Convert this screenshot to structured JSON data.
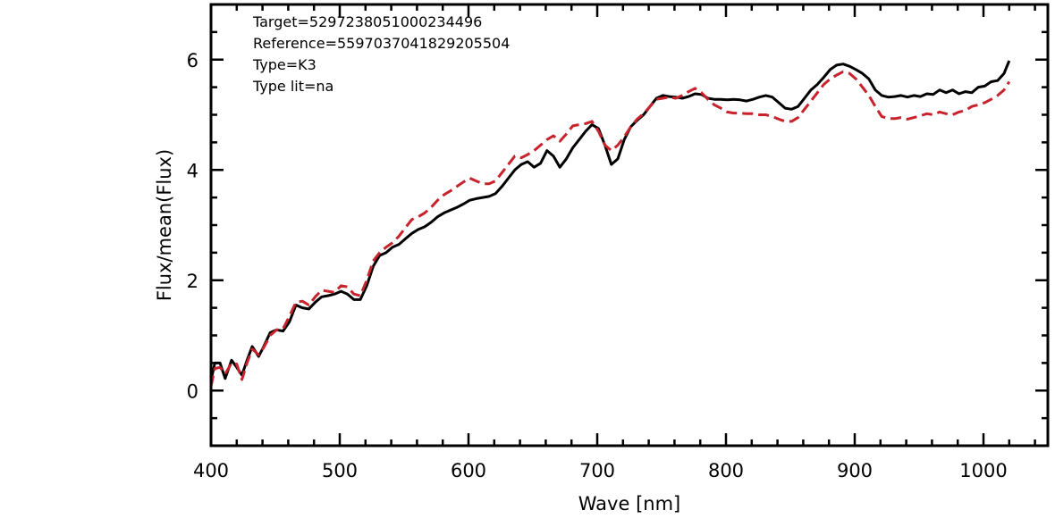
{
  "chart_data": {
    "type": "line",
    "title": "",
    "xlabel": "Wave [nm]",
    "ylabel": "Flux/mean(Flux)",
    "xlim": [
      400,
      1050
    ],
    "ylim": [
      -1,
      7
    ],
    "xticks": [
      400,
      500,
      600,
      700,
      800,
      900,
      1000
    ],
    "yticks": [
      0,
      2,
      4,
      6
    ],
    "grid": false,
    "legend": "none",
    "annotations": [
      "Target=5297238051000234496",
      "Reference=5597037041829205504",
      "Type=K3",
      "Type lit=na"
    ],
    "series": [
      {
        "color": "#000000",
        "style": "solid",
        "points": [
          [
            400,
            0.18
          ],
          [
            403,
            0.5
          ],
          [
            407,
            0.5
          ],
          [
            411,
            0.22
          ],
          [
            416,
            0.55
          ],
          [
            420,
            0.42
          ],
          [
            424,
            0.28
          ],
          [
            428,
            0.55
          ],
          [
            432,
            0.8
          ],
          [
            437,
            0.62
          ],
          [
            441,
            0.8
          ],
          [
            446,
            1.05
          ],
          [
            451,
            1.1
          ],
          [
            456,
            1.08
          ],
          [
            461,
            1.25
          ],
          [
            466,
            1.55
          ],
          [
            471,
            1.5
          ],
          [
            476,
            1.48
          ],
          [
            481,
            1.6
          ],
          [
            486,
            1.7
          ],
          [
            491,
            1.72
          ],
          [
            496,
            1.75
          ],
          [
            501,
            1.8
          ],
          [
            506,
            1.75
          ],
          [
            511,
            1.65
          ],
          [
            516,
            1.65
          ],
          [
            521,
            1.9
          ],
          [
            526,
            2.25
          ],
          [
            531,
            2.45
          ],
          [
            536,
            2.5
          ],
          [
            541,
            2.6
          ],
          [
            546,
            2.65
          ],
          [
            551,
            2.75
          ],
          [
            556,
            2.85
          ],
          [
            561,
            2.92
          ],
          [
            566,
            2.97
          ],
          [
            571,
            3.05
          ],
          [
            576,
            3.15
          ],
          [
            581,
            3.22
          ],
          [
            586,
            3.27
          ],
          [
            591,
            3.32
          ],
          [
            596,
            3.38
          ],
          [
            601,
            3.45
          ],
          [
            606,
            3.48
          ],
          [
            611,
            3.5
          ],
          [
            616,
            3.52
          ],
          [
            621,
            3.57
          ],
          [
            626,
            3.7
          ],
          [
            631,
            3.85
          ],
          [
            636,
            4.0
          ],
          [
            641,
            4.1
          ],
          [
            646,
            4.15
          ],
          [
            651,
            4.05
          ],
          [
            656,
            4.12
          ],
          [
            661,
            4.35
          ],
          [
            666,
            4.25
          ],
          [
            671,
            4.05
          ],
          [
            676,
            4.2
          ],
          [
            681,
            4.4
          ],
          [
            686,
            4.55
          ],
          [
            691,
            4.7
          ],
          [
            696,
            4.82
          ],
          [
            701,
            4.75
          ],
          [
            706,
            4.45
          ],
          [
            711,
            4.1
          ],
          [
            716,
            4.2
          ],
          [
            721,
            4.55
          ],
          [
            726,
            4.78
          ],
          [
            731,
            4.9
          ],
          [
            736,
            5.0
          ],
          [
            741,
            5.15
          ],
          [
            746,
            5.3
          ],
          [
            751,
            5.35
          ],
          [
            756,
            5.33
          ],
          [
            761,
            5.32
          ],
          [
            766,
            5.3
          ],
          [
            771,
            5.33
          ],
          [
            776,
            5.38
          ],
          [
            781,
            5.37
          ],
          [
            786,
            5.3
          ],
          [
            791,
            5.28
          ],
          [
            796,
            5.28
          ],
          [
            801,
            5.27
          ],
          [
            806,
            5.28
          ],
          [
            811,
            5.27
          ],
          [
            816,
            5.25
          ],
          [
            821,
            5.28
          ],
          [
            826,
            5.32
          ],
          [
            831,
            5.35
          ],
          [
            836,
            5.32
          ],
          [
            841,
            5.22
          ],
          [
            846,
            5.12
          ],
          [
            851,
            5.1
          ],
          [
            856,
            5.15
          ],
          [
            861,
            5.3
          ],
          [
            866,
            5.45
          ],
          [
            871,
            5.55
          ],
          [
            876,
            5.68
          ],
          [
            881,
            5.82
          ],
          [
            886,
            5.9
          ],
          [
            891,
            5.92
          ],
          [
            896,
            5.88
          ],
          [
            901,
            5.82
          ],
          [
            906,
            5.75
          ],
          [
            911,
            5.65
          ],
          [
            916,
            5.45
          ],
          [
            921,
            5.35
          ],
          [
            926,
            5.32
          ],
          [
            931,
            5.33
          ],
          [
            936,
            5.35
          ],
          [
            941,
            5.32
          ],
          [
            946,
            5.35
          ],
          [
            951,
            5.33
          ],
          [
            956,
            5.38
          ],
          [
            961,
            5.37
          ],
          [
            966,
            5.45
          ],
          [
            971,
            5.4
          ],
          [
            976,
            5.45
          ],
          [
            981,
            5.38
          ],
          [
            986,
            5.42
          ],
          [
            991,
            5.4
          ],
          [
            996,
            5.5
          ],
          [
            1001,
            5.52
          ],
          [
            1006,
            5.6
          ],
          [
            1011,
            5.62
          ],
          [
            1016,
            5.75
          ],
          [
            1020,
            5.98
          ]
        ]
      },
      {
        "color": "#c8232c",
        "style": "dashed",
        "points": [
          [
            400,
            0.08
          ],
          [
            403,
            0.4
          ],
          [
            407,
            0.42
          ],
          [
            411,
            0.3
          ],
          [
            416,
            0.5
          ],
          [
            420,
            0.48
          ],
          [
            424,
            0.2
          ],
          [
            428,
            0.5
          ],
          [
            432,
            0.75
          ],
          [
            437,
            0.65
          ],
          [
            441,
            0.78
          ],
          [
            446,
            1.0
          ],
          [
            451,
            1.1
          ],
          [
            456,
            1.12
          ],
          [
            461,
            1.35
          ],
          [
            466,
            1.6
          ],
          [
            471,
            1.62
          ],
          [
            476,
            1.55
          ],
          [
            481,
            1.7
          ],
          [
            486,
            1.82
          ],
          [
            491,
            1.8
          ],
          [
            496,
            1.78
          ],
          [
            501,
            1.9
          ],
          [
            506,
            1.88
          ],
          [
            511,
            1.75
          ],
          [
            516,
            1.72
          ],
          [
            521,
            2.0
          ],
          [
            526,
            2.35
          ],
          [
            531,
            2.5
          ],
          [
            536,
            2.6
          ],
          [
            541,
            2.68
          ],
          [
            546,
            2.8
          ],
          [
            551,
            2.95
          ],
          [
            556,
            3.1
          ],
          [
            561,
            3.15
          ],
          [
            566,
            3.22
          ],
          [
            571,
            3.32
          ],
          [
            576,
            3.45
          ],
          [
            581,
            3.55
          ],
          [
            586,
            3.62
          ],
          [
            591,
            3.7
          ],
          [
            596,
            3.78
          ],
          [
            601,
            3.85
          ],
          [
            606,
            3.8
          ],
          [
            611,
            3.75
          ],
          [
            616,
            3.75
          ],
          [
            621,
            3.8
          ],
          [
            626,
            3.95
          ],
          [
            631,
            4.1
          ],
          [
            636,
            4.25
          ],
          [
            641,
            4.22
          ],
          [
            646,
            4.28
          ],
          [
            651,
            4.35
          ],
          [
            656,
            4.45
          ],
          [
            661,
            4.55
          ],
          [
            666,
            4.62
          ],
          [
            671,
            4.52
          ],
          [
            676,
            4.65
          ],
          [
            681,
            4.8
          ],
          [
            686,
            4.82
          ],
          [
            691,
            4.84
          ],
          [
            696,
            4.88
          ],
          [
            701,
            4.7
          ],
          [
            706,
            4.45
          ],
          [
            711,
            4.35
          ],
          [
            716,
            4.45
          ],
          [
            721,
            4.6
          ],
          [
            726,
            4.78
          ],
          [
            731,
            4.92
          ],
          [
            736,
            5.02
          ],
          [
            741,
            5.15
          ],
          [
            746,
            5.28
          ],
          [
            751,
            5.3
          ],
          [
            756,
            5.32
          ],
          [
            761,
            5.3
          ],
          [
            766,
            5.35
          ],
          [
            771,
            5.42
          ],
          [
            776,
            5.48
          ],
          [
            781,
            5.4
          ],
          [
            786,
            5.28
          ],
          [
            791,
            5.18
          ],
          [
            796,
            5.12
          ],
          [
            801,
            5.05
          ],
          [
            806,
            5.03
          ],
          [
            811,
            5.03
          ],
          [
            816,
            5.02
          ],
          [
            821,
            5.02
          ],
          [
            826,
            5.0
          ],
          [
            831,
            5.0
          ],
          [
            836,
            4.97
          ],
          [
            841,
            4.92
          ],
          [
            846,
            4.88
          ],
          [
            851,
            4.88
          ],
          [
            856,
            4.95
          ],
          [
            861,
            5.1
          ],
          [
            866,
            5.25
          ],
          [
            871,
            5.4
          ],
          [
            876,
            5.55
          ],
          [
            881,
            5.65
          ],
          [
            886,
            5.72
          ],
          [
            891,
            5.78
          ],
          [
            896,
            5.75
          ],
          [
            901,
            5.65
          ],
          [
            906,
            5.5
          ],
          [
            911,
            5.35
          ],
          [
            916,
            5.15
          ],
          [
            921,
            4.97
          ],
          [
            926,
            4.93
          ],
          [
            931,
            4.93
          ],
          [
            936,
            4.95
          ],
          [
            941,
            4.92
          ],
          [
            946,
            4.95
          ],
          [
            951,
            4.98
          ],
          [
            956,
            5.02
          ],
          [
            961,
            5.0
          ],
          [
            966,
            5.05
          ],
          [
            971,
            5.02
          ],
          [
            976,
            5.0
          ],
          [
            981,
            5.05
          ],
          [
            986,
            5.08
          ],
          [
            991,
            5.15
          ],
          [
            996,
            5.18
          ],
          [
            1001,
            5.22
          ],
          [
            1006,
            5.28
          ],
          [
            1011,
            5.35
          ],
          [
            1016,
            5.45
          ],
          [
            1020,
            5.6
          ]
        ]
      }
    ]
  }
}
